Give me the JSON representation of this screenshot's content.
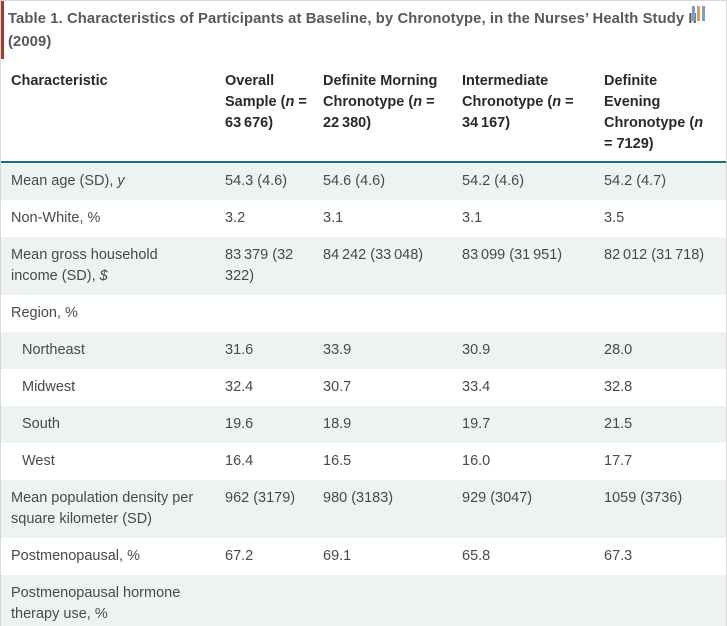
{
  "title": "Table 1. Characteristics of Participants at Baseline, by Chronotype, in the Nurses’ Health Study II (2009)",
  "icons": {
    "top_right": "column-bars-icon"
  },
  "colors": {
    "accent_bar": "#9e3b34",
    "header_rule": "#15707a",
    "row_stripe": "#edf3f1",
    "icon_blue": "#7d9cc3",
    "icon_orange": "#e09a58"
  },
  "table": {
    "columns": [
      {
        "pre": "Characteristic",
        "italic": "",
        "post": ""
      },
      {
        "pre": "Overall Sample (",
        "italic": "n",
        "post": " = 63 676)"
      },
      {
        "pre": "Definite Morning Chronotype (",
        "italic": "n",
        "post": " = 22 380)"
      },
      {
        "pre": "Intermediate Chronotype (",
        "italic": "n",
        "post": " = 34 167)"
      },
      {
        "pre": "Definite Evening Chronotype (",
        "italic": "n",
        "post": " = 7129)"
      }
    ],
    "rows": [
      {
        "label": "Mean age (SD), ",
        "unit": "y",
        "values": [
          "54.3 (4.6)",
          "54.6 (4.6)",
          "54.2 (4.6)",
          "54.2 (4.7)"
        ]
      },
      {
        "label": "Non-White, %",
        "unit": "",
        "values": [
          "3.2",
          "3.1",
          "3.1",
          "3.5"
        ]
      },
      {
        "label": "Mean gross household income (SD), ",
        "unit": "$",
        "values": [
          "83 379 (32 322)",
          "84 242 (33 048)",
          "83 099 (31 951)",
          "82 012 (31 718)"
        ]
      },
      {
        "label": "Region, %",
        "unit": "",
        "values": [
          "",
          "",
          "",
          ""
        ]
      },
      {
        "label": "Northeast",
        "unit": "",
        "values": [
          "31.6",
          "33.9",
          "30.9",
          "28.0"
        ]
      },
      {
        "label": "Midwest",
        "unit": "",
        "values": [
          "32.4",
          "30.7",
          "33.4",
          "32.8"
        ]
      },
      {
        "label": "South",
        "unit": "",
        "values": [
          "19.6",
          "18.9",
          "19.7",
          "21.5"
        ]
      },
      {
        "label": "West",
        "unit": "",
        "values": [
          "16.4",
          "16.5",
          "16.0",
          "17.7"
        ]
      },
      {
        "label": "Mean population density per square kilometer (SD)",
        "unit": "",
        "values": [
          "962 (3179)",
          "980 (3183)",
          "929 (3047)",
          "1059 (3736)"
        ]
      },
      {
        "label": "Postmenopausal, %",
        "unit": "",
        "values": [
          "67.2",
          "69.1",
          "65.8",
          "67.3"
        ]
      },
      {
        "label": "Postmenopausal hormone therapy use, %",
        "unit": "",
        "values": [
          "",
          "",
          "",
          ""
        ]
      }
    ]
  }
}
